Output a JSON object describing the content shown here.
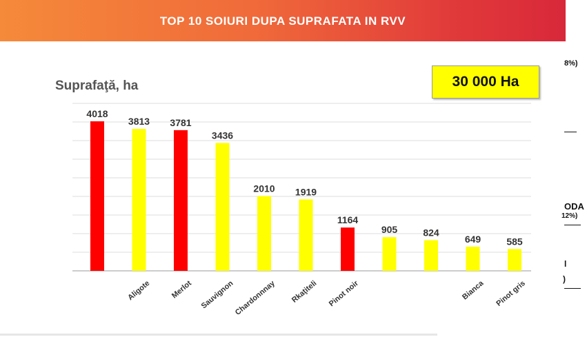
{
  "banner": {
    "title": "TOP 10 SOIURI DUPA SUPRAFATA IN RVV"
  },
  "total_box": {
    "label": "30 000 Ha"
  },
  "side_panel": {
    "fragments": [
      "8%)",
      "ODA",
      "12%)",
      "l",
      ")"
    ]
  },
  "colors": {
    "red": "#ff0000",
    "yellow": "#ffff00",
    "banner_start": "#f58a3a",
    "banner_end": "#d8283a"
  },
  "chart_data": {
    "type": "bar",
    "ylabel": "Suprafaţă, ha",
    "categories": [
      "",
      "Aligote",
      "Merlot",
      "Sauvignon",
      "Chardonnnay",
      "Rkaţiteli",
      "Pinot noir",
      "",
      "",
      "Bianca",
      "Pinot gris"
    ],
    "values": [
      4018,
      3813,
      3781,
      3436,
      2010,
      1919,
      1164,
      905,
      824,
      649,
      585
    ],
    "bar_colors": [
      "red",
      "yellow",
      "red",
      "yellow",
      "yellow",
      "yellow",
      "red",
      "yellow",
      "yellow",
      "yellow",
      "yellow"
    ],
    "data_labels": [
      "4018",
      "3813",
      "3781",
      "3436",
      "2010",
      "1919",
      "1164",
      "905",
      "824",
      "649",
      "585"
    ],
    "ylim": [
      0,
      4500
    ],
    "grid": true,
    "legend": "none"
  }
}
